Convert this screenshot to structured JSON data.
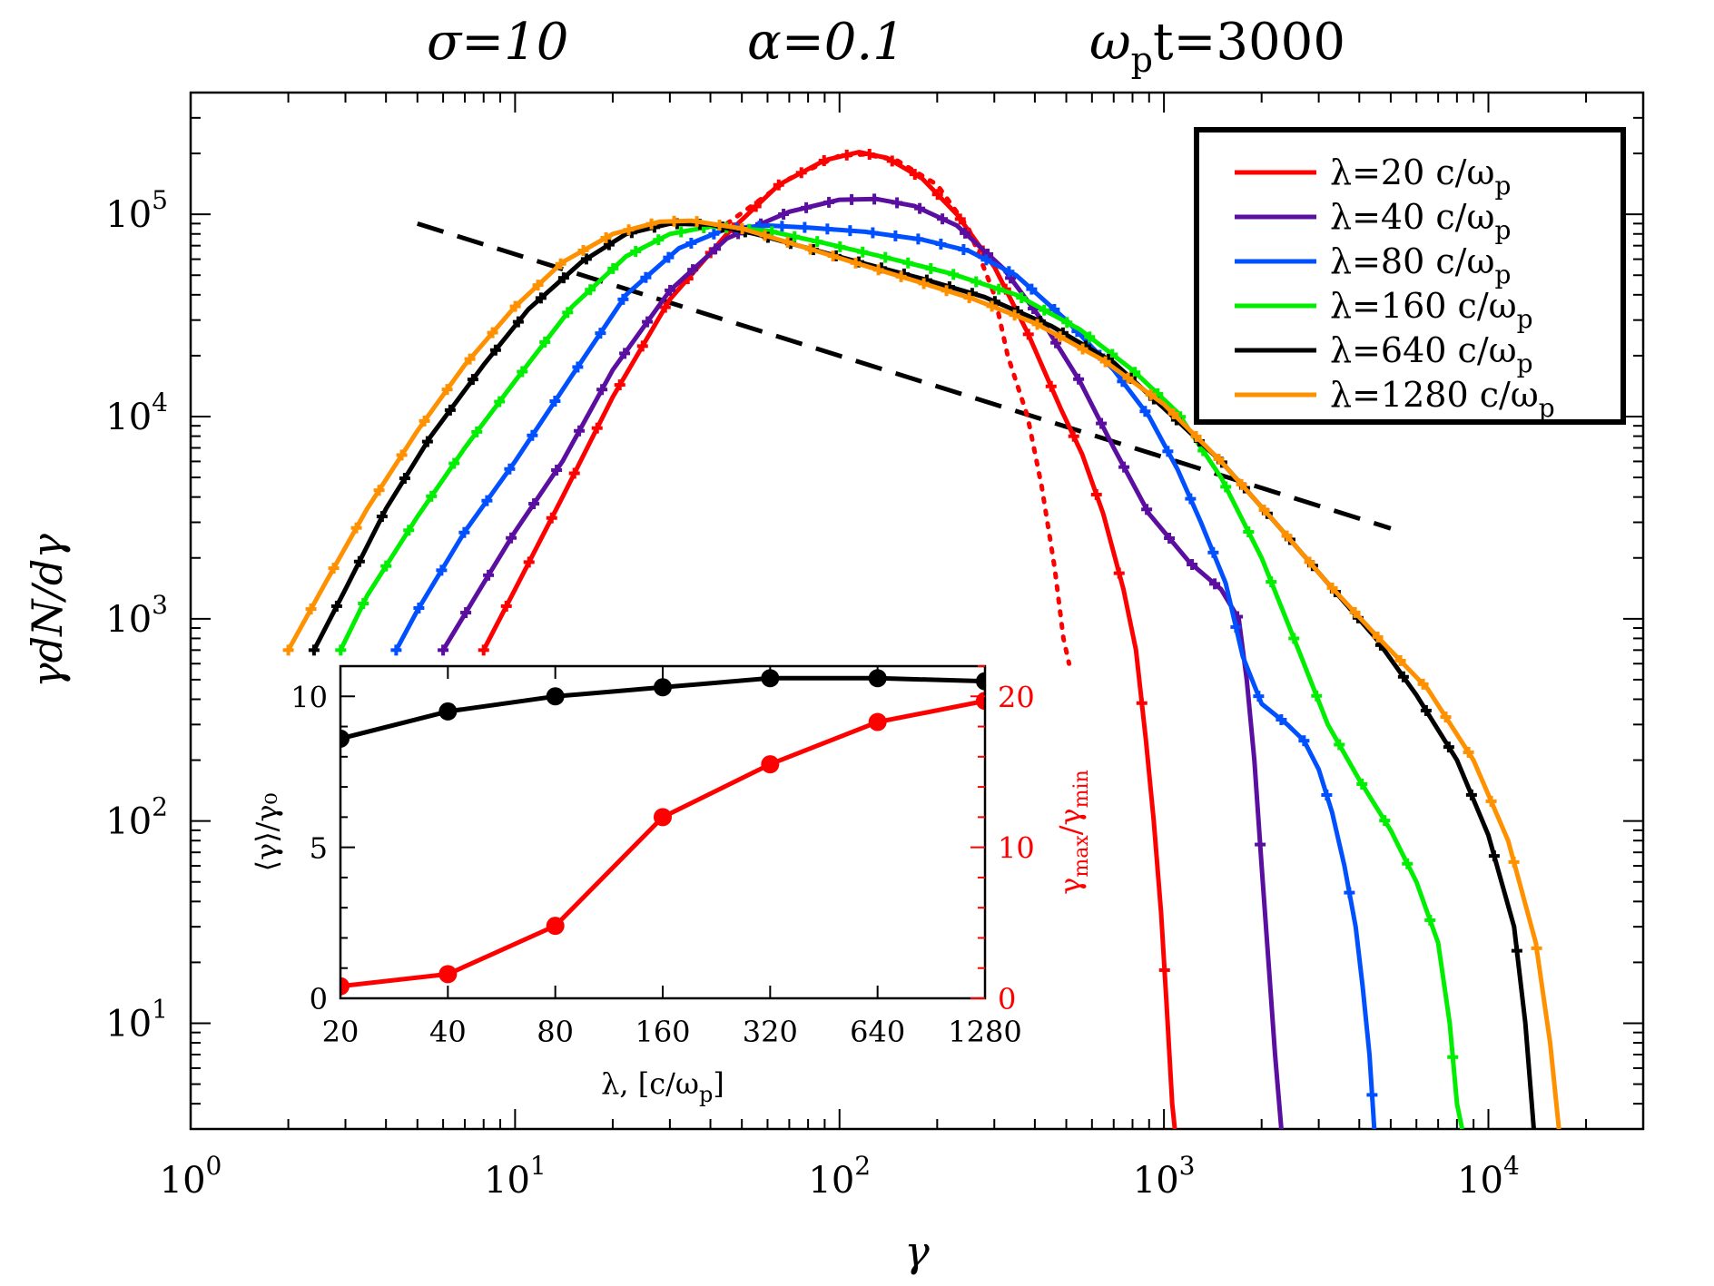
{
  "title": {
    "sigma": "σ=10",
    "alpha": "α=0.1",
    "time_base": "ω",
    "time_sub": "p",
    "time_rest": "t=3000"
  },
  "chart_data": [
    {
      "type": "line",
      "scale": "log-log",
      "xlabel": "γ",
      "ylabel": "γdN/dγ",
      "xlim": [
        1,
        30000
      ],
      "ylim": [
        3,
        400000
      ],
      "x_ticks": [
        {
          "value": 1,
          "base": "10",
          "exp": "0"
        },
        {
          "value": 10,
          "base": "10",
          "exp": "1"
        },
        {
          "value": 100,
          "base": "10",
          "exp": "2"
        },
        {
          "value": 1000,
          "base": "10",
          "exp": "3"
        },
        {
          "value": 10000,
          "base": "10",
          "exp": "4"
        }
      ],
      "y_ticks": [
        {
          "value": 10,
          "base": "10",
          "exp": "1"
        },
        {
          "value": 100,
          "base": "10",
          "exp": "2"
        },
        {
          "value": 1000,
          "base": "10",
          "exp": "3"
        },
        {
          "value": 10000,
          "base": "10",
          "exp": "4"
        },
        {
          "value": 100000,
          "base": "10",
          "exp": "5"
        }
      ],
      "legend_position": "top-right",
      "legend_unit_base": "c/ω",
      "legend_unit_sub": "p",
      "series": [
        {
          "name": "λ=20",
          "color": "#ff0000",
          "points": [
            [
              8,
              700
            ],
            [
              10,
              1400
            ],
            [
              14,
              4000
            ],
            [
              20,
              12500
            ],
            [
              30,
              38000
            ],
            [
              45,
              80000
            ],
            [
              65,
              140000
            ],
            [
              90,
              185000
            ],
            [
              115,
              203000
            ],
            [
              140,
              190000
            ],
            [
              180,
              150000
            ],
            [
              230,
              100000
            ],
            [
              300,
              55000
            ],
            [
              380,
              26000
            ],
            [
              480,
              11000
            ],
            [
              560,
              6500
            ],
            [
              650,
              3300
            ],
            [
              750,
              1400
            ],
            [
              820,
              700
            ],
            [
              880,
              250
            ],
            [
              930,
              100
            ],
            [
              980,
              35
            ],
            [
              1020,
              12
            ],
            [
              1060,
              4
            ],
            [
              1080,
              3
            ]
          ]
        },
        {
          "name": "λ=40",
          "color": "#5a0fa0",
          "points": [
            [
              6,
              700
            ],
            [
              8,
              1500
            ],
            [
              10,
              2700
            ],
            [
              14,
              6000
            ],
            [
              20,
              17000
            ],
            [
              30,
              42000
            ],
            [
              45,
              76000
            ],
            [
              70,
              103000
            ],
            [
              100,
              118000
            ],
            [
              130,
              119000
            ],
            [
              170,
              110000
            ],
            [
              230,
              88000
            ],
            [
              320,
              54000
            ],
            [
              420,
              30000
            ],
            [
              550,
              15000
            ],
            [
              700,
              7000
            ],
            [
              900,
              3300
            ],
            [
              1200,
              1900
            ],
            [
              1500,
              1400
            ],
            [
              1700,
              1000
            ],
            [
              1800,
              500
            ],
            [
              1900,
              200
            ],
            [
              2000,
              60
            ],
            [
              2100,
              20
            ],
            [
              2200,
              7
            ],
            [
              2300,
              3
            ],
            [
              2350,
              2.5
            ]
          ]
        },
        {
          "name": "λ=80",
          "color": "#0050ff",
          "points": [
            [
              4.3,
              700
            ],
            [
              5,
              1100
            ],
            [
              7,
              2700
            ],
            [
              10,
              6000
            ],
            [
              15,
              16000
            ],
            [
              22,
              40000
            ],
            [
              32,
              68000
            ],
            [
              45,
              85000
            ],
            [
              60,
              88000
            ],
            [
              80,
              86000
            ],
            [
              120,
              82000
            ],
            [
              180,
              75000
            ],
            [
              250,
              66000
            ],
            [
              350,
              50000
            ],
            [
              500,
              30000
            ],
            [
              700,
              17000
            ],
            [
              900,
              10000
            ],
            [
              1100,
              5500
            ],
            [
              1300,
              3000
            ],
            [
              1550,
              1500
            ],
            [
              1750,
              650
            ],
            [
              2000,
              380
            ],
            [
              2400,
              300
            ],
            [
              2700,
              250
            ],
            [
              3000,
              180
            ],
            [
              3300,
              110
            ],
            [
              3600,
              60
            ],
            [
              3900,
              30
            ],
            [
              4100,
              15
            ],
            [
              4300,
              7
            ],
            [
              4450,
              3
            ]
          ]
        },
        {
          "name": "λ=160",
          "color": "#00ee00",
          "points": [
            [
              2.9,
              700
            ],
            [
              3.5,
              1300
            ],
            [
              5,
              3200
            ],
            [
              7,
              7000
            ],
            [
              10,
              15000
            ],
            [
              15,
              35000
            ],
            [
              22,
              62000
            ],
            [
              30,
              80000
            ],
            [
              40,
              87000
            ],
            [
              60,
              83000
            ],
            [
              90,
              72000
            ],
            [
              140,
              61000
            ],
            [
              220,
              51000
            ],
            [
              350,
              40000
            ],
            [
              550,
              27000
            ],
            [
              800,
              17000
            ],
            [
              1100,
              10500
            ],
            [
              1500,
              5000
            ],
            [
              2000,
              2000
            ],
            [
              2600,
              700
            ],
            [
              3200,
              300
            ],
            [
              4000,
              160
            ],
            [
              5000,
              90
            ],
            [
              6000,
              50
            ],
            [
              7000,
              25
            ],
            [
              7600,
              10
            ],
            [
              8000,
              4
            ],
            [
              8300,
              3
            ]
          ]
        },
        {
          "name": "λ=640",
          "color": "#000000",
          "points": [
            [
              2.4,
              700
            ],
            [
              3,
              1400
            ],
            [
              4,
              3500
            ],
            [
              5.5,
              8000
            ],
            [
              8,
              18000
            ],
            [
              11,
              34000
            ],
            [
              16,
              58000
            ],
            [
              22,
              80000
            ],
            [
              30,
              90000
            ],
            [
              40,
              89000
            ],
            [
              55,
              80000
            ],
            [
              80,
              68000
            ],
            [
              120,
              57000
            ],
            [
              180,
              48000
            ],
            [
              280,
              39000
            ],
            [
              450,
              28000
            ],
            [
              700,
              18500
            ],
            [
              1000,
              11000
            ],
            [
              1500,
              6000
            ],
            [
              2200,
              3000
            ],
            [
              3200,
              1500
            ],
            [
              4500,
              800
            ],
            [
              6000,
              420
            ],
            [
              8000,
              200
            ],
            [
              10000,
              85
            ],
            [
              12000,
              30
            ],
            [
              13000,
              10
            ],
            [
              13800,
              3
            ]
          ]
        },
        {
          "name": "λ=1280",
          "color": "#ff9000",
          "points": [
            [
              2,
              700
            ],
            [
              2.6,
              1500
            ],
            [
              3.5,
              3500
            ],
            [
              5,
              8500
            ],
            [
              7,
              18000
            ],
            [
              10,
              35000
            ],
            [
              14,
              58000
            ],
            [
              20,
              80000
            ],
            [
              28,
              92000
            ],
            [
              35,
              93000
            ],
            [
              50,
              85000
            ],
            [
              75,
              70000
            ],
            [
              110,
              58000
            ],
            [
              170,
              47000
            ],
            [
              260,
              38000
            ],
            [
              400,
              29000
            ],
            [
              650,
              19000
            ],
            [
              1000,
              11500
            ],
            [
              1500,
              6000
            ],
            [
              2200,
              3000
            ],
            [
              3200,
              1500
            ],
            [
              4600,
              800
            ],
            [
              6500,
              450
            ],
            [
              9000,
              200
            ],
            [
              11500,
              80
            ],
            [
              14000,
              25
            ],
            [
              15500,
              8
            ],
            [
              16500,
              3
            ]
          ]
        }
      ],
      "annotations": [
        {
          "type": "reference-line",
          "style": "dashed",
          "color": "#000000",
          "points": [
            [
              5,
              90000
            ],
            [
              5000,
              2800
            ]
          ]
        },
        {
          "type": "fit",
          "style": "dotted",
          "color": "#ff0000",
          "points": [
            [
              45,
              90000
            ],
            [
              70,
              150000
            ],
            [
              100,
              195000
            ],
            [
              120,
              198000
            ],
            [
              150,
              185000
            ],
            [
              200,
              140000
            ],
            [
              250,
              85000
            ],
            [
              300,
              40000
            ],
            [
              330,
              20000
            ],
            [
              380,
              10000
            ],
            [
              420,
              4500
            ],
            [
              460,
              1800
            ],
            [
              490,
              800
            ],
            [
              510,
              600
            ]
          ]
        }
      ]
    },
    {
      "type": "line",
      "scale": "log-x",
      "xlabel_base": "λ, [c/ω",
      "xlabel_sub": "p",
      "xlabel_end": "]",
      "ylabel_left": "⟨γ⟩/γ₀",
      "ylabel_right_base": "γ",
      "ylabel_right_sub1": "max",
      "ylabel_right_mid": "/γ",
      "ylabel_right_sub2": "min",
      "categories": [
        "20",
        "40",
        "80",
        "160",
        "320",
        "640",
        "1280"
      ],
      "x": [
        20,
        40,
        80,
        160,
        320,
        640,
        1280
      ],
      "ylim_left": [
        0,
        11
      ],
      "ylim_right": [
        0,
        22
      ],
      "left_ticks": [
        "0",
        "5",
        "10"
      ],
      "right_ticks": [
        "0",
        "10",
        "20"
      ],
      "series": [
        {
          "name": "⟨γ⟩/γ₀",
          "color": "#000000",
          "axis": "left",
          "values": [
            8.6,
            9.5,
            10.0,
            10.3,
            10.6,
            10.6,
            10.5
          ]
        },
        {
          "name": "γmax/γmin",
          "color": "#ff0000",
          "axis": "right",
          "values": [
            0.8,
            1.6,
            4.8,
            12.0,
            15.5,
            18.3,
            19.7
          ]
        }
      ]
    }
  ]
}
